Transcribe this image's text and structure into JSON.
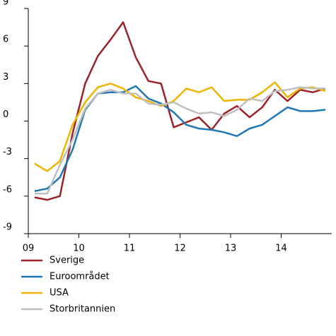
{
  "chart_data": {
    "type": "line",
    "x": [
      9.125,
      9.375,
      9.625,
      9.875,
      10.125,
      10.375,
      10.625,
      10.875,
      11.125,
      11.375,
      11.625,
      11.875,
      12.125,
      12.375,
      12.625,
      12.875,
      13.125,
      13.375,
      13.625,
      13.875,
      14.125,
      14.375,
      14.625,
      14.875
    ],
    "series": [
      {
        "name": "Sverige",
        "color": "#9b2226",
        "values": [
          -6.1,
          -6.3,
          -6.0,
          -1.0,
          3.0,
          5.2,
          6.5,
          7.9,
          5.1,
          3.2,
          3.0,
          -0.5,
          -0.1,
          0.3,
          -0.7,
          0.6,
          1.2,
          0.3,
          1.1,
          2.5,
          1.6,
          2.5,
          2.3,
          2.6
        ]
      },
      {
        "name": "Euroområdet",
        "color": "#1f78b4",
        "values": [
          -5.6,
          -5.4,
          -4.5,
          -2.3,
          0.9,
          2.2,
          2.3,
          2.3,
          2.8,
          1.8,
          1.4,
          0.7,
          -0.3,
          -0.6,
          -0.7,
          -0.9,
          -1.2,
          -0.6,
          -0.3,
          0.4,
          1.1,
          0.8,
          0.8,
          0.9
        ]
      },
      {
        "name": "USA",
        "color": "#f0b400",
        "values": [
          -3.4,
          -4.0,
          -3.2,
          -0.3,
          1.5,
          2.7,
          3.0,
          2.6,
          1.9,
          1.6,
          1.2,
          1.6,
          2.6,
          2.3,
          2.7,
          1.6,
          1.7,
          1.7,
          2.3,
          3.1,
          1.9,
          2.6,
          2.7,
          2.4
        ]
      },
      {
        "name": "Storbritannien",
        "color": "#bfbfbf",
        "values": [
          -5.8,
          -5.8,
          -3.5,
          -1.5,
          1.0,
          2.2,
          2.5,
          2.2,
          2.2,
          1.4,
          1.3,
          1.5,
          1.0,
          0.6,
          0.7,
          0.4,
          0.9,
          1.8,
          1.6,
          2.4,
          2.5,
          2.7,
          2.6,
          2.6
        ]
      }
    ],
    "xlim": [
      9,
      15
    ],
    "xticks": [
      {
        "value": 9,
        "label": "09"
      },
      10,
      11,
      12,
      13,
      14
    ],
    "ylim": [
      -9,
      9
    ],
    "yticks": [
      -9,
      -6,
      -3,
      0,
      3,
      6,
      9
    ]
  }
}
